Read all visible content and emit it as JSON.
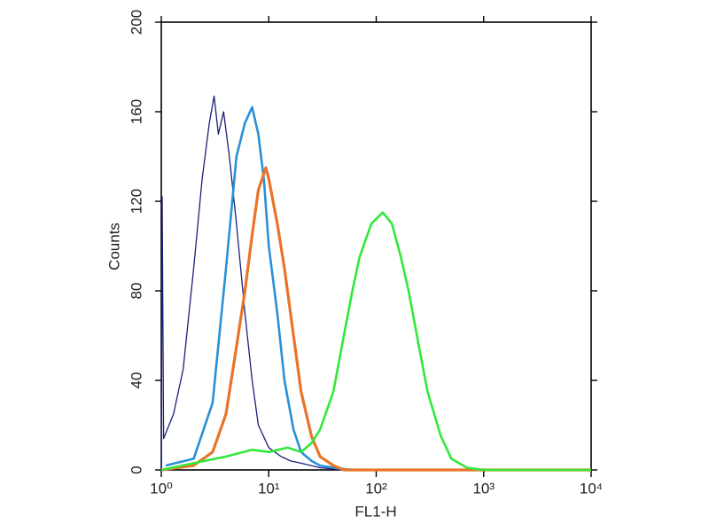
{
  "chart_data": {
    "type": "line",
    "xscale": "log",
    "xlabel": "FL1-H",
    "ylabel": "Counts",
    "xlim": [
      1,
      10000
    ],
    "ylim": [
      0,
      200
    ],
    "xticks": [
      {
        "value": 1,
        "label": "10⁰"
      },
      {
        "value": 10,
        "label": "10¹"
      },
      {
        "value": 100,
        "label": "10²"
      },
      {
        "value": 1000,
        "label": "10³"
      },
      {
        "value": 10000,
        "label": "10⁴"
      }
    ],
    "yticks": [
      0,
      40,
      80,
      120,
      160,
      200
    ],
    "series": [
      {
        "color": "#1a1f7a",
        "x": [
          1,
          1.02,
          1.05,
          1.3,
          1.6,
          2,
          2.4,
          2.8,
          3.1,
          3.4,
          3.8,
          4.3,
          5,
          6,
          7,
          8,
          10,
          13,
          16,
          20,
          30,
          50,
          10000
        ],
        "values": [
          0,
          122,
          14,
          25,
          45,
          90,
          130,
          155,
          167,
          150,
          160,
          140,
          110,
          70,
          40,
          20,
          10,
          6,
          4,
          3,
          1,
          0,
          0
        ]
      },
      {
        "color": "#2b8fd6",
        "x": [
          1.1,
          2,
          3,
          4,
          5,
          6,
          7,
          8,
          9,
          10,
          12,
          14,
          17,
          20,
          25,
          30,
          40,
          60,
          10000
        ],
        "values": [
          2,
          5,
          30,
          90,
          140,
          155,
          162,
          150,
          130,
          100,
          70,
          40,
          18,
          8,
          4,
          2,
          1,
          0,
          0
        ]
      },
      {
        "color": "#e8742a",
        "x": [
          1,
          2,
          3,
          4,
          5,
          6,
          7,
          8,
          9.4,
          10,
          12,
          14,
          17,
          20,
          25,
          30,
          40,
          50,
          10000
        ],
        "values": [
          0,
          2,
          8,
          25,
          55,
          80,
          105,
          125,
          135,
          130,
          110,
          90,
          60,
          35,
          15,
          6,
          2,
          0,
          0
        ]
      },
      {
        "color": "#33e83a",
        "x": [
          1,
          2,
          4,
          7,
          10,
          15,
          20,
          25,
          30,
          40,
          50,
          60,
          70,
          90,
          115,
          140,
          170,
          200,
          250,
          300,
          400,
          500,
          700,
          1000,
          10000
        ],
        "values": [
          0,
          3,
          6,
          9,
          8,
          10,
          8,
          12,
          18,
          35,
          60,
          80,
          95,
          110,
          115,
          110,
          95,
          80,
          55,
          35,
          15,
          5,
          1,
          0,
          0
        ]
      }
    ]
  }
}
